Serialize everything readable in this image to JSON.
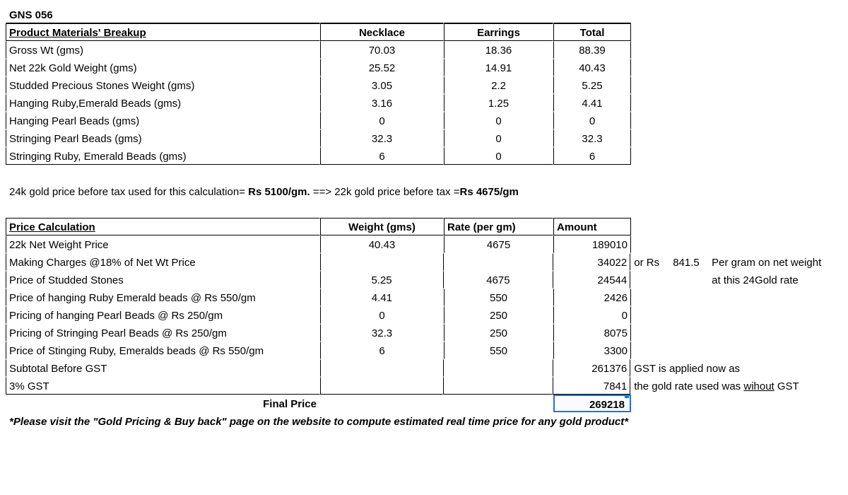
{
  "title": "GNS 056",
  "materials_header": {
    "label": "Product Materials' Breakup",
    "c1": "Necklace",
    "c2": "Earrings",
    "c3": "Total"
  },
  "materials_rows": [
    {
      "label": "Gross Wt (gms)",
      "c1": "70.03",
      "c2": "18.36",
      "c3": "88.39"
    },
    {
      "label": "Net 22k Gold Weight (gms)",
      "c1": "25.52",
      "c2": "14.91",
      "c3": "40.43"
    },
    {
      "label": "Studded Precious Stones Weight (gms)",
      "c1": "3.05",
      "c2": "2.2",
      "c3": "5.25"
    },
    {
      "label": "Hanging Ruby,Emerald Beads (gms)",
      "c1": "3.16",
      "c2": "1.25",
      "c3": "4.41"
    },
    {
      "label": "Hanging Pearl Beads (gms)",
      "c1": "0",
      "c2": "0",
      "c3": "0"
    },
    {
      "label": "Stringing Pearl Beads (gms)",
      "c1": "32.3",
      "c2": "0",
      "c3": "32.3"
    },
    {
      "label": "Stringing Ruby, Emerald Beads (gms)",
      "c1": "6",
      "c2": "0",
      "c3": "6"
    }
  ],
  "price_note": {
    "pre": "24k gold price before tax used for this calculation= ",
    "bold1": "Rs 5100/gm.",
    "mid": "  ==> 22k gold price before tax =",
    "bold2": "Rs 4675/gm"
  },
  "calc_header": {
    "label": "Price Calculation",
    "c1": "Weight (gms)",
    "c2": "Rate (per gm)",
    "c3": "Amount"
  },
  "calc_rows": [
    {
      "label": "22k Net Weight Price",
      "c1": "40.43",
      "c2": "4675",
      "c3": "189010",
      "amt_right": true
    },
    {
      "label": " Making Charges @18% of Net Wt Price",
      "c1": "",
      "c2": "",
      "c3": "34022",
      "amt_right": true,
      "note_e": "or Rs",
      "note_f": "841.5",
      "note_g": "Per gram on net weight"
    },
    {
      "label": "Price of Studded Stones",
      "c1": "5.25",
      "c2": "4675",
      "c3": "24544",
      "amt_right": true,
      "note_g": "at this 24Gold rate"
    },
    {
      "label": "Price of hanging Ruby Emerald beads @ Rs 550/gm",
      "c1": "4.41",
      "c2": "550",
      "c3": "2426",
      "amt_right": true
    },
    {
      "label": "Pricing of hanging Pearl Beads @ Rs 250/gm",
      "c1": "0",
      "c2": "250",
      "c3": "0",
      "amt_right": true
    },
    {
      "label": "Pricing of Stringing Pearl Beads @ Rs 250/gm",
      "c1": "32.3",
      "c2": "250",
      "c3": "8075",
      "amt_right": true
    },
    {
      "label": "Price of Stinging Ruby, Emeralds beads @ Rs 550/gm",
      "c1": "6",
      "c2": "550",
      "c3": "3300",
      "amt_right": true
    },
    {
      "label": " Subtotal Before GST",
      "c1": "",
      "c2": "",
      "c3": "261376",
      "amt_right": true,
      "note_wide": "GST is applied now as"
    },
    {
      "label": " 3% GST",
      "c1": "",
      "c2": "",
      "c3": "7841",
      "amt_right": true,
      "note_wide_pre": "the gold rate used was ",
      "note_wide_ul": "wihout",
      "note_wide_post": " GST"
    }
  ],
  "final": {
    "label": "Final Price",
    "amount": "269218"
  },
  "footer": "*Please visit the \"Gold Pricing & Buy back\" page on the website to compute estimated real time price for any gold product*"
}
